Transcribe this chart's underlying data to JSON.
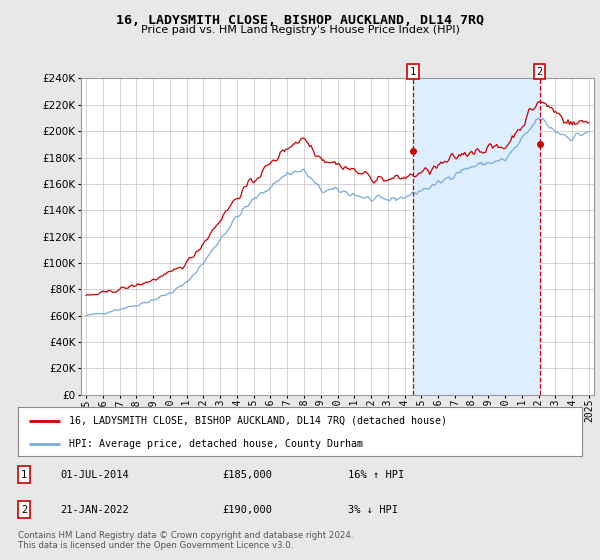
{
  "title": "16, LADYSMITH CLOSE, BISHOP AUCKLAND, DL14 7RQ",
  "subtitle": "Price paid vs. HM Land Registry's House Price Index (HPI)",
  "legend_line1": "16, LADYSMITH CLOSE, BISHOP AUCKLAND, DL14 7RQ (detached house)",
  "legend_line2": "HPI: Average price, detached house, County Durham",
  "footer": "Contains HM Land Registry data © Crown copyright and database right 2024.\nThis data is licensed under the Open Government Licence v3.0.",
  "annotation1": {
    "label": "1",
    "date": "01-JUL-2014",
    "price": "£185,000",
    "hpi": "16% ↑ HPI"
  },
  "annotation2": {
    "label": "2",
    "date": "21-JAN-2022",
    "price": "£190,000",
    "hpi": "3% ↓ HPI"
  },
  "xlim_start": 1994.7,
  "xlim_end": 2025.3,
  "ylim_min": 0,
  "ylim_max": 240000,
  "yticks": [
    0,
    20000,
    40000,
    60000,
    80000,
    100000,
    120000,
    140000,
    160000,
    180000,
    200000,
    220000,
    240000
  ],
  "background_color": "#e8e8e8",
  "plot_bg_color": "#ffffff",
  "grid_color": "#cccccc",
  "hpi_color": "#7aaadd",
  "price_color": "#cc0000",
  "shade_color": "#ddeeff",
  "marker1_x": 2014.5,
  "marker1_y": 185000,
  "marker2_x": 2022.05,
  "marker2_y": 190000,
  "vline1_x": 2014.5,
  "vline2_x": 2022.05,
  "xticks": [
    1995,
    1996,
    1997,
    1998,
    1999,
    2000,
    2001,
    2002,
    2003,
    2004,
    2005,
    2006,
    2007,
    2008,
    2009,
    2010,
    2011,
    2012,
    2013,
    2014,
    2015,
    2016,
    2017,
    2018,
    2019,
    2020,
    2021,
    2022,
    2023,
    2024,
    2025
  ]
}
